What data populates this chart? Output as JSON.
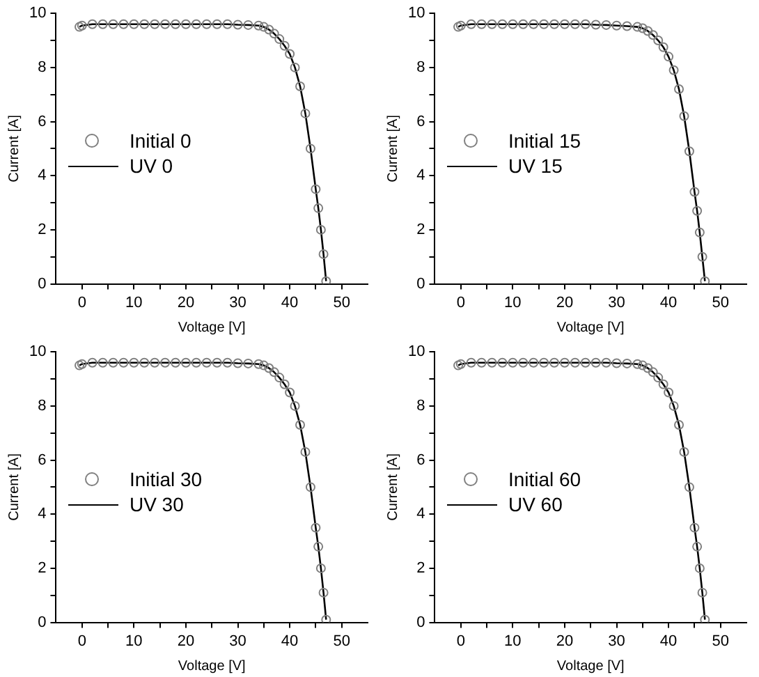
{
  "chart_data": [
    {
      "type": "line",
      "xlabel": "Voltage [V]",
      "ylabel": "Current [A]",
      "xlim": [
        -5,
        55
      ],
      "ylim": [
        0,
        10
      ],
      "xticks": [
        0,
        {
          "value": 5,
          "label": null
        },
        10,
        {
          "value": 15,
          "label": null
        },
        20,
        {
          "value": 25,
          "label": null
        },
        30,
        {
          "value": 35,
          "label": null
        },
        40,
        {
          "value": 45,
          "label": null
        },
        50
      ],
      "yticks": [
        0,
        {
          "value": 1,
          "label": null
        },
        2,
        {
          "value": 3,
          "label": null
        },
        4,
        {
          "value": 5,
          "label": null
        },
        6,
        {
          "value": 7,
          "label": null
        },
        8,
        {
          "value": 9,
          "label": null
        },
        10
      ],
      "grid": false,
      "legend": "left",
      "series": [
        {
          "name": "Initial 0",
          "type": "scatter",
          "marker": "circle",
          "color": "#808080",
          "x": [
            -0.5,
            0,
            2,
            4,
            6,
            8,
            10,
            12,
            14,
            16,
            18,
            20,
            22,
            24,
            26,
            28,
            30,
            32,
            34,
            35,
            36,
            37,
            38,
            39,
            40,
            41,
            42,
            43,
            44,
            45,
            45.5,
            46,
            46.5,
            47
          ],
          "values": [
            9.5,
            9.55,
            9.6,
            9.6,
            9.6,
            9.6,
            9.6,
            9.6,
            9.6,
            9.6,
            9.6,
            9.6,
            9.6,
            9.6,
            9.6,
            9.6,
            9.58,
            9.57,
            9.55,
            9.5,
            9.4,
            9.25,
            9.05,
            8.8,
            8.5,
            8.0,
            7.3,
            6.3,
            5.0,
            3.5,
            2.8,
            2.0,
            1.1,
            0.1
          ]
        },
        {
          "name": "UV 0",
          "marker": "none",
          "color": "#000000",
          "x": [
            -0.5,
            0,
            2,
            4,
            6,
            8,
            10,
            12,
            14,
            16,
            18,
            20,
            22,
            24,
            26,
            28,
            30,
            32,
            34,
            35,
            36,
            37,
            38,
            39,
            40,
            41,
            42,
            43,
            44,
            45,
            45.5,
            46,
            46.5,
            47
          ],
          "values": [
            9.5,
            9.55,
            9.6,
            9.6,
            9.6,
            9.6,
            9.6,
            9.6,
            9.6,
            9.6,
            9.6,
            9.6,
            9.6,
            9.6,
            9.6,
            9.6,
            9.58,
            9.57,
            9.55,
            9.5,
            9.4,
            9.25,
            9.05,
            8.8,
            8.5,
            8.0,
            7.3,
            6.3,
            5.0,
            3.5,
            2.8,
            2.0,
            1.1,
            0.1
          ]
        }
      ]
    },
    {
      "type": "line",
      "xlabel": "Voltage [V]",
      "ylabel": "Current [A]",
      "xlim": [
        -5,
        55
      ],
      "ylim": [
        0,
        10
      ],
      "xticks": [
        0,
        {
          "value": 5,
          "label": null
        },
        10,
        {
          "value": 15,
          "label": null
        },
        20,
        {
          "value": 25,
          "label": null
        },
        30,
        {
          "value": 35,
          "label": null
        },
        40,
        {
          "value": 45,
          "label": null
        },
        50
      ],
      "yticks": [
        0,
        {
          "value": 1,
          "label": null
        },
        2,
        {
          "value": 3,
          "label": null
        },
        4,
        {
          "value": 5,
          "label": null
        },
        6,
        {
          "value": 7,
          "label": null
        },
        8,
        {
          "value": 9,
          "label": null
        },
        10
      ],
      "grid": false,
      "legend": "left",
      "series": [
        {
          "name": "Initial 15",
          "type": "scatter",
          "marker": "circle",
          "color": "#808080",
          "x": [
            -0.5,
            0,
            2,
            4,
            6,
            8,
            10,
            12,
            14,
            16,
            18,
            20,
            22,
            24,
            26,
            28,
            30,
            32,
            34,
            35,
            36,
            37,
            38,
            39,
            40,
            41,
            42,
            43,
            44,
            45,
            45.5,
            46,
            46.5,
            47
          ],
          "values": [
            9.5,
            9.55,
            9.6,
            9.6,
            9.6,
            9.6,
            9.6,
            9.6,
            9.6,
            9.6,
            9.6,
            9.6,
            9.6,
            9.6,
            9.58,
            9.57,
            9.55,
            9.53,
            9.5,
            9.45,
            9.35,
            9.2,
            9.0,
            8.75,
            8.4,
            7.9,
            7.2,
            6.2,
            4.9,
            3.4,
            2.7,
            1.9,
            1.0,
            0.1
          ]
        },
        {
          "name": "UV 15",
          "marker": "none",
          "color": "#000000",
          "x": [
            -0.5,
            0,
            2,
            4,
            6,
            8,
            10,
            12,
            14,
            16,
            18,
            20,
            22,
            24,
            26,
            28,
            30,
            32,
            34,
            35,
            36,
            37,
            38,
            39,
            40,
            41,
            42,
            43,
            44,
            45,
            45.5,
            46,
            46.5,
            47
          ],
          "values": [
            9.5,
            9.55,
            9.6,
            9.6,
            9.6,
            9.6,
            9.6,
            9.6,
            9.6,
            9.6,
            9.6,
            9.6,
            9.6,
            9.6,
            9.58,
            9.57,
            9.55,
            9.53,
            9.5,
            9.45,
            9.35,
            9.2,
            9.0,
            8.75,
            8.4,
            7.9,
            7.2,
            6.2,
            4.9,
            3.4,
            2.7,
            1.9,
            1.0,
            0.1
          ]
        }
      ]
    },
    {
      "type": "line",
      "xlabel": "Voltage [V]",
      "ylabel": "Current [A]",
      "xlim": [
        -5,
        55
      ],
      "ylim": [
        0,
        10
      ],
      "xticks": [
        0,
        {
          "value": 5,
          "label": null
        },
        10,
        {
          "value": 15,
          "label": null
        },
        20,
        {
          "value": 25,
          "label": null
        },
        30,
        {
          "value": 35,
          "label": null
        },
        40,
        {
          "value": 45,
          "label": null
        },
        50
      ],
      "yticks": [
        0,
        {
          "value": 1,
          "label": null
        },
        2,
        {
          "value": 3,
          "label": null
        },
        4,
        {
          "value": 5,
          "label": null
        },
        6,
        {
          "value": 7,
          "label": null
        },
        8,
        {
          "value": 9,
          "label": null
        },
        10
      ],
      "grid": false,
      "legend": "left",
      "series": [
        {
          "name": "Initial 30",
          "type": "scatter",
          "marker": "circle",
          "color": "#808080",
          "x": [
            -0.5,
            0,
            2,
            4,
            6,
            8,
            10,
            12,
            14,
            16,
            18,
            20,
            22,
            24,
            26,
            28,
            30,
            32,
            34,
            35,
            36,
            37,
            38,
            39,
            40,
            41,
            42,
            43,
            44,
            45,
            45.5,
            46,
            46.5,
            47
          ],
          "values": [
            9.5,
            9.55,
            9.6,
            9.6,
            9.6,
            9.6,
            9.6,
            9.6,
            9.6,
            9.6,
            9.6,
            9.6,
            9.6,
            9.6,
            9.6,
            9.6,
            9.58,
            9.57,
            9.55,
            9.5,
            9.4,
            9.25,
            9.05,
            8.8,
            8.5,
            8.0,
            7.3,
            6.3,
            5.0,
            3.5,
            2.8,
            2.0,
            1.1,
            0.1
          ]
        },
        {
          "name": "UV 30",
          "marker": "none",
          "color": "#000000",
          "x": [
            -0.5,
            0,
            2,
            4,
            6,
            8,
            10,
            12,
            14,
            16,
            18,
            20,
            22,
            24,
            26,
            28,
            30,
            32,
            34,
            35,
            36,
            37,
            38,
            39,
            40,
            41,
            42,
            43,
            44,
            45,
            45.5,
            46,
            46.5,
            47
          ],
          "values": [
            9.5,
            9.55,
            9.6,
            9.6,
            9.6,
            9.6,
            9.6,
            9.6,
            9.6,
            9.6,
            9.6,
            9.6,
            9.6,
            9.6,
            9.6,
            9.6,
            9.58,
            9.57,
            9.55,
            9.5,
            9.4,
            9.25,
            9.05,
            8.8,
            8.5,
            8.0,
            7.3,
            6.3,
            5.0,
            3.5,
            2.8,
            2.0,
            1.1,
            0.1
          ]
        }
      ]
    },
    {
      "type": "line",
      "xlabel": "Voltage [V]",
      "ylabel": "Current [A]",
      "xlim": [
        -5,
        55
      ],
      "ylim": [
        0,
        10
      ],
      "xticks": [
        0,
        {
          "value": 5,
          "label": null
        },
        10,
        {
          "value": 15,
          "label": null
        },
        20,
        {
          "value": 25,
          "label": null
        },
        30,
        {
          "value": 35,
          "label": null
        },
        40,
        {
          "value": 45,
          "label": null
        },
        50
      ],
      "yticks": [
        0,
        {
          "value": 1,
          "label": null
        },
        2,
        {
          "value": 3,
          "label": null
        },
        4,
        {
          "value": 5,
          "label": null
        },
        6,
        {
          "value": 7,
          "label": null
        },
        8,
        {
          "value": 9,
          "label": null
        },
        10
      ],
      "grid": false,
      "legend": "left",
      "series": [
        {
          "name": "Initial 60",
          "type": "scatter",
          "marker": "circle",
          "color": "#808080",
          "x": [
            -0.5,
            0,
            2,
            4,
            6,
            8,
            10,
            12,
            14,
            16,
            18,
            20,
            22,
            24,
            26,
            28,
            30,
            32,
            34,
            35,
            36,
            37,
            38,
            39,
            40,
            41,
            42,
            43,
            44,
            45,
            45.5,
            46,
            46.5,
            47
          ],
          "values": [
            9.5,
            9.55,
            9.6,
            9.6,
            9.6,
            9.6,
            9.6,
            9.6,
            9.6,
            9.6,
            9.6,
            9.6,
            9.6,
            9.6,
            9.6,
            9.6,
            9.58,
            9.57,
            9.55,
            9.5,
            9.4,
            9.25,
            9.05,
            8.8,
            8.5,
            8.0,
            7.3,
            6.3,
            5.0,
            3.5,
            2.8,
            2.0,
            1.1,
            0.1
          ]
        },
        {
          "name": "UV 60",
          "marker": "none",
          "color": "#000000",
          "x": [
            -0.5,
            0,
            2,
            4,
            6,
            8,
            10,
            12,
            14,
            16,
            18,
            20,
            22,
            24,
            26,
            28,
            30,
            32,
            34,
            35,
            36,
            37,
            38,
            39,
            40,
            41,
            42,
            43,
            44,
            45,
            45.5,
            46,
            46.5,
            47
          ],
          "values": [
            9.5,
            9.55,
            9.6,
            9.6,
            9.6,
            9.6,
            9.6,
            9.6,
            9.6,
            9.6,
            9.6,
            9.6,
            9.6,
            9.6,
            9.6,
            9.6,
            9.58,
            9.57,
            9.55,
            9.5,
            9.4,
            9.25,
            9.05,
            8.8,
            8.5,
            8.0,
            7.3,
            6.3,
            5.0,
            3.5,
            2.8,
            2.0,
            1.1,
            0.1
          ]
        }
      ]
    }
  ]
}
